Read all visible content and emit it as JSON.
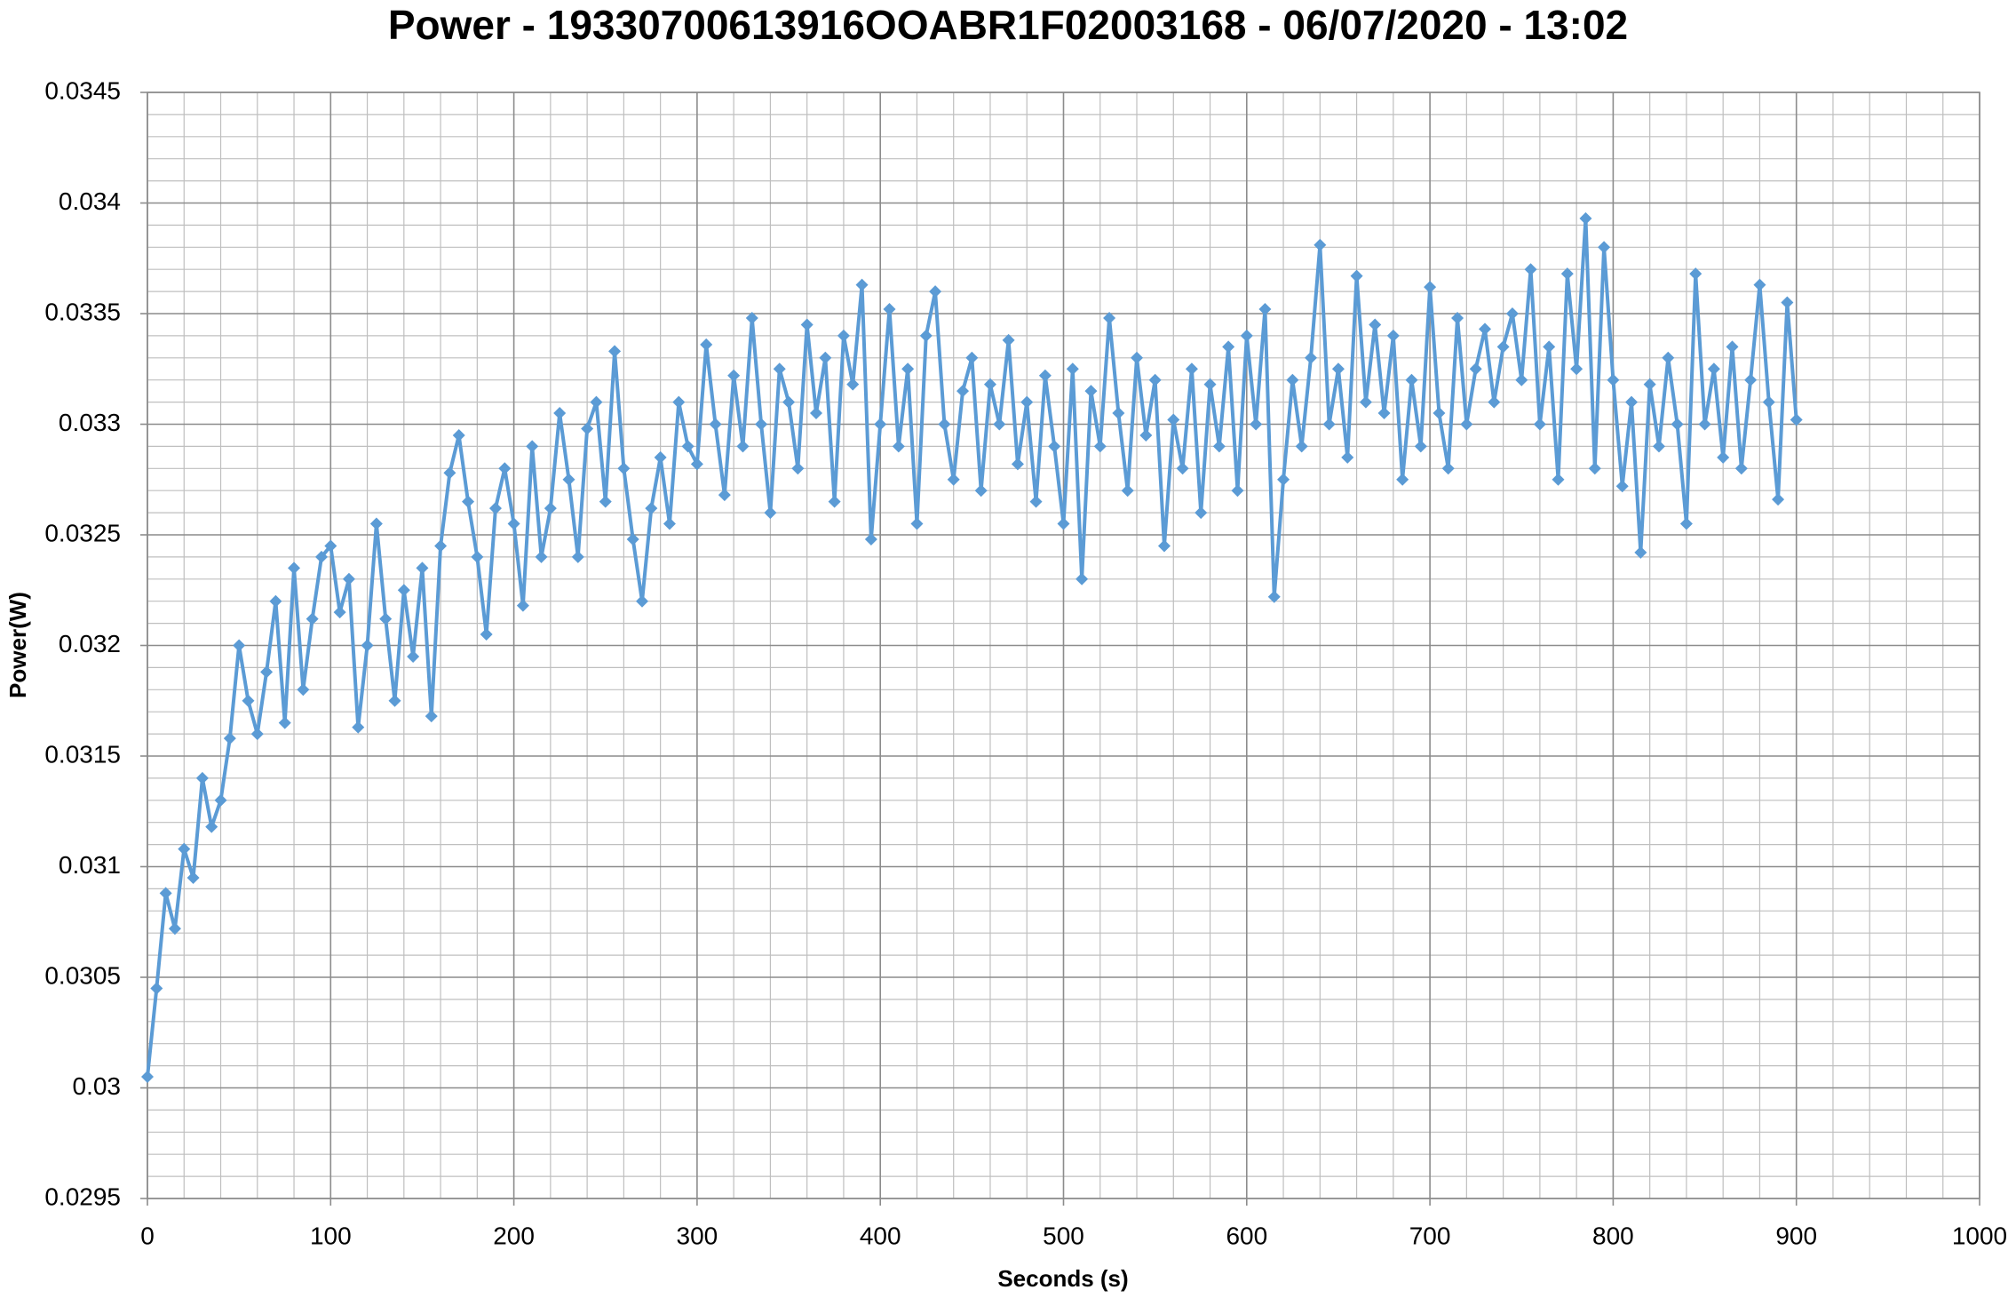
{
  "chart_data": {
    "type": "line",
    "title": "Power - 19330700613916OOABR1F02003168 - 06/07/2020 - 13:02",
    "x_label": "Seconds (s)",
    "y_label": "Power(W)",
    "x": [
      0,
      5,
      10,
      15,
      20,
      25,
      30,
      35,
      40,
      45,
      50,
      55,
      60,
      65,
      70,
      75,
      80,
      85,
      90,
      95,
      100,
      105,
      110,
      115,
      120,
      125,
      130,
      135,
      140,
      145,
      150,
      155,
      160,
      165,
      170,
      175,
      180,
      185,
      190,
      195,
      200,
      205,
      210,
      215,
      220,
      225,
      230,
      235,
      240,
      245,
      250,
      255,
      260,
      265,
      270,
      275,
      280,
      285,
      290,
      295,
      300,
      305,
      310,
      315,
      320,
      325,
      330,
      335,
      340,
      345,
      350,
      355,
      360,
      365,
      370,
      375,
      380,
      385,
      390,
      395,
      400,
      405,
      410,
      415,
      420,
      425,
      430,
      435,
      440,
      445,
      450,
      455,
      460,
      465,
      470,
      475,
      480,
      485,
      490,
      495,
      500,
      505,
      510,
      515,
      520,
      525,
      530,
      535,
      540,
      545,
      550,
      555,
      560,
      565,
      570,
      575,
      580,
      585,
      590,
      595,
      600,
      605,
      610,
      615,
      620,
      625,
      630,
      635,
      640,
      645,
      650,
      655,
      660,
      665,
      670,
      675,
      680,
      685,
      690,
      695,
      700,
      705,
      710,
      715,
      720,
      725,
      730,
      735,
      740,
      745,
      750,
      755,
      760,
      765,
      770,
      775,
      780,
      785,
      790,
      795,
      800,
      805,
      810,
      815,
      820,
      825,
      830,
      835,
      840,
      845,
      850,
      855,
      860,
      865,
      870,
      875,
      880,
      885,
      890,
      895,
      900
    ],
    "series": [
      {
        "name": "Power",
        "color": "#5b9bd5",
        "values": [
          0.03005,
          0.03045,
          0.03088,
          0.03072,
          0.03108,
          0.03095,
          0.0314,
          0.03118,
          0.0313,
          0.03158,
          0.032,
          0.03175,
          0.0316,
          0.03188,
          0.0322,
          0.03165,
          0.03235,
          0.0318,
          0.03212,
          0.0324,
          0.03245,
          0.03215,
          0.0323,
          0.03163,
          0.032,
          0.03255,
          0.03212,
          0.03175,
          0.03225,
          0.03195,
          0.03235,
          0.03168,
          0.03245,
          0.03278,
          0.03295,
          0.03265,
          0.0324,
          0.03205,
          0.03262,
          0.0328,
          0.03255,
          0.03218,
          0.0329,
          0.0324,
          0.03262,
          0.03305,
          0.03275,
          0.0324,
          0.03298,
          0.0331,
          0.03265,
          0.03333,
          0.0328,
          0.03248,
          0.0322,
          0.03262,
          0.03285,
          0.03255,
          0.0331,
          0.0329,
          0.03282,
          0.03336,
          0.033,
          0.03268,
          0.03322,
          0.0329,
          0.03348,
          0.033,
          0.0326,
          0.03325,
          0.0331,
          0.0328,
          0.03345,
          0.03305,
          0.0333,
          0.03265,
          0.0334,
          0.03318,
          0.03363,
          0.03248,
          0.033,
          0.03352,
          0.0329,
          0.03325,
          0.03255,
          0.0334,
          0.0336,
          0.033,
          0.03275,
          0.03315,
          0.0333,
          0.0327,
          0.03318,
          0.033,
          0.03338,
          0.03282,
          0.0331,
          0.03265,
          0.03322,
          0.0329,
          0.03255,
          0.03325,
          0.0323,
          0.03315,
          0.0329,
          0.03348,
          0.03305,
          0.0327,
          0.0333,
          0.03295,
          0.0332,
          0.03245,
          0.03302,
          0.0328,
          0.03325,
          0.0326,
          0.03318,
          0.0329,
          0.03335,
          0.0327,
          0.0334,
          0.033,
          0.03352,
          0.03222,
          0.03275,
          0.0332,
          0.0329,
          0.0333,
          0.03381,
          0.033,
          0.03325,
          0.03285,
          0.03367,
          0.0331,
          0.03345,
          0.03305,
          0.0334,
          0.03275,
          0.0332,
          0.0329,
          0.03362,
          0.03305,
          0.0328,
          0.03348,
          0.033,
          0.03325,
          0.03343,
          0.0331,
          0.03335,
          0.0335,
          0.0332,
          0.0337,
          0.033,
          0.03335,
          0.03275,
          0.03368,
          0.03325,
          0.03393,
          0.0328,
          0.0338,
          0.0332,
          0.03272,
          0.0331,
          0.03242,
          0.03318,
          0.0329,
          0.0333,
          0.033,
          0.03255,
          0.03368,
          0.033,
          0.03325,
          0.03285,
          0.03335,
          0.0328,
          0.0332,
          0.03363,
          0.0331,
          0.03266,
          0.03355,
          0.03302
        ]
      }
    ],
    "xlim": [
      0,
      1000
    ],
    "xticks": [
      0,
      100,
      200,
      300,
      400,
      500,
      600,
      700,
      800,
      900,
      1000
    ],
    "ylim": [
      0.0295,
      0.0345
    ],
    "yticks": [
      0.0295,
      0.03,
      0.0305,
      0.031,
      0.0315,
      0.032,
      0.0325,
      0.033,
      0.0335,
      0.034,
      0.0345
    ],
    "grid": true,
    "minor_divisions": 5,
    "marker": "diamond"
  }
}
